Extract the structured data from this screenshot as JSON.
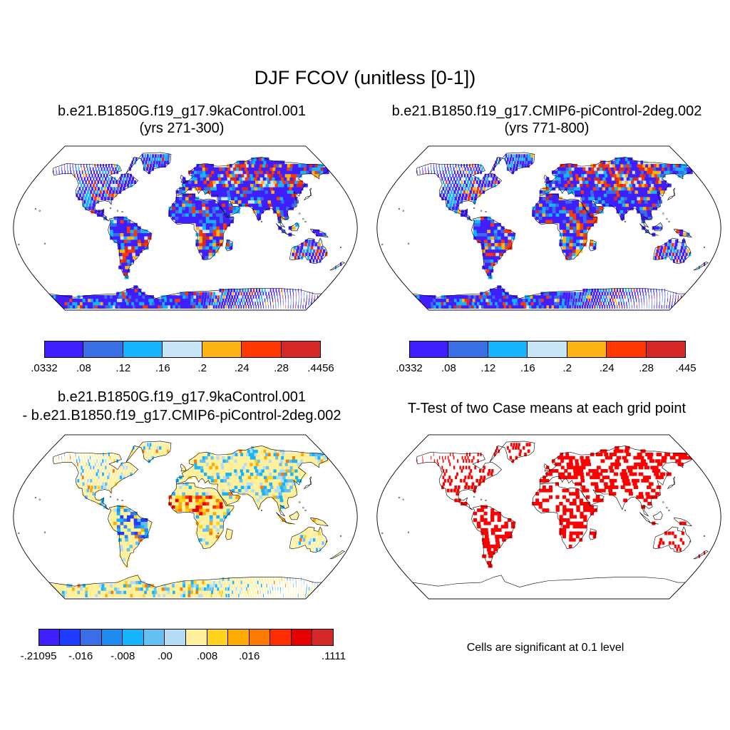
{
  "title": "DJF FCOV (unitless [0-1])",
  "colors": {
    "land_low": "#3f1fff",
    "land_mid_blue": "#3a6ee6",
    "land_cyan": "#14b4ff",
    "land_pale": "#c8e6f8",
    "land_orange": "#fcb414",
    "land_red": "#ff3700",
    "land_darkred": "#d72828",
    "diff_neutral": "#fff09b",
    "sig": "#ff0000",
    "outline": "#000000"
  },
  "panels": [
    {
      "title_line1": "b.e21.B1850G.f19_g17.9kaControl.001",
      "title_line2": "(yrs 271-300)"
    },
    {
      "title_line1": "b.e21.B1850.f19_g17.CMIP6-piControl-2deg.002",
      "title_line2": "(yrs 771-800)"
    },
    {
      "title_line1": "b.e21.B1850G.f19_g17.9kaControl.001",
      "title_line2": "- b.e21.B1850.f19_g17.CMIP6-piControl-2deg.002"
    },
    {
      "title_line1": "T-Test of two Case means at each grid point",
      "title_line2": ""
    }
  ],
  "colorbars": [
    {
      "colors": [
        "#3f1fff",
        "#3a6ee6",
        "#14b4ff",
        "#c8e6f8",
        "#fcb414",
        "#ff3700",
        "#d72828"
      ],
      "labels": [
        ".0332",
        ".08",
        ".12",
        ".16",
        ".2",
        ".24",
        ".28",
        ".4456"
      ]
    },
    {
      "colors": [
        "#3f1fff",
        "#3a6ee6",
        "#14b4ff",
        "#c8e6f8",
        "#fcb414",
        "#ff3700",
        "#d72828"
      ],
      "labels": [
        ".0332",
        ".08",
        ".12",
        ".16",
        ".2",
        ".24",
        ".28",
        ".445"
      ]
    },
    {
      "colors": [
        "#3f1fff",
        "#1e3cff",
        "#3a6ee6",
        "#1e8cf0",
        "#14b4ff",
        "#64c0f0",
        "#b4dcf4",
        "#fff09b",
        "#ffd21e",
        "#ffaa00",
        "#ff7800",
        "#ff2d00",
        "#e60000",
        "#d72828"
      ],
      "labels": [
        "-.21095",
        "-.016",
        "-.008",
        ".00",
        ".008",
        ".016",
        ".1111"
      ]
    }
  ],
  "significance_note": "Cells are significant at 0.1 level"
}
